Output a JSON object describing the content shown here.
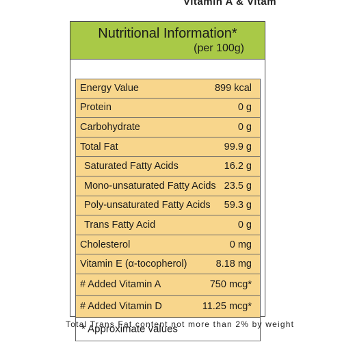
{
  "top_partial_text": "Vitamin A & Vitam",
  "title": "Nutritional Information*",
  "subtitle": "(per 100g)",
  "rows": [
    {
      "label": "Energy Value",
      "value": "899 kcal"
    },
    {
      "label": "Protein",
      "value": "0 g"
    },
    {
      "label": "Carbohydrate",
      "value": "0 g"
    },
    {
      "label": "Total Fat",
      "value": "99.9 g"
    },
    {
      "label": "Saturated Fatty Acids",
      "value": "16.2 g"
    },
    {
      "label": "Mono-unsaturated Fatty Acids",
      "value": "23.5 g"
    },
    {
      "label": "Poly-unsaturated Fatty Acids",
      "value": "59.3 g"
    },
    {
      "label": "Trans Fatty Acid",
      "value": "0 g"
    },
    {
      "label": "Cholesterol",
      "value": "0 mg"
    },
    {
      "label": "Vitamin E (α-tocopherol)",
      "value": "8.18 mg"
    },
    {
      "label": "# Added Vitamin A",
      "value": "750 mcg*"
    },
    {
      "label": "# Added Vitamin D",
      "value": "11.25 mcg*"
    }
  ],
  "note": "* Approximate values",
  "footer": "Total Trans Fat content not more than 2% by weight",
  "colors": {
    "header_green": "#a9c947",
    "row_peach": "#f8d68c",
    "border": "#444444"
  }
}
